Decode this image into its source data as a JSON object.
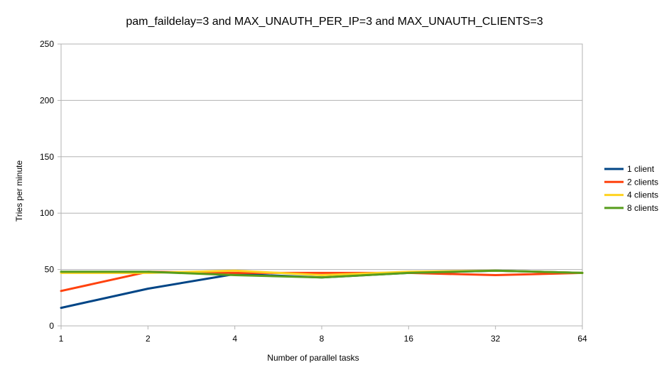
{
  "chart_data": {
    "type": "line",
    "title": "pam_faildelay=3 and MAX_UNAUTH_PER_IP=3 and MAX_UNAUTH_CLIENTS=3",
    "xlabel": "Number of parallel tasks",
    "ylabel": "Tries per minute",
    "categories": [
      "1",
      "2",
      "4",
      "8",
      "16",
      "32",
      "64"
    ],
    "ylim": [
      0,
      250
    ],
    "yticks": [
      0,
      50,
      100,
      150,
      200,
      250
    ],
    "grid": "horizontal",
    "legend_position": "right",
    "series": [
      {
        "name": "1 client",
        "color": "#004586",
        "values": [
          16,
          33,
          46,
          43,
          47,
          49,
          47
        ]
      },
      {
        "name": "2 clients",
        "color": "#ff420e",
        "values": [
          31,
          48,
          47,
          47,
          47,
          45,
          47
        ]
      },
      {
        "name": "4 clients",
        "color": "#ffd320",
        "values": [
          47,
          47,
          49,
          45,
          48,
          49,
          47
        ]
      },
      {
        "name": "8 clients",
        "color": "#579d1c",
        "values": [
          48,
          48,
          45,
          43,
          47,
          49,
          47
        ]
      }
    ]
  }
}
